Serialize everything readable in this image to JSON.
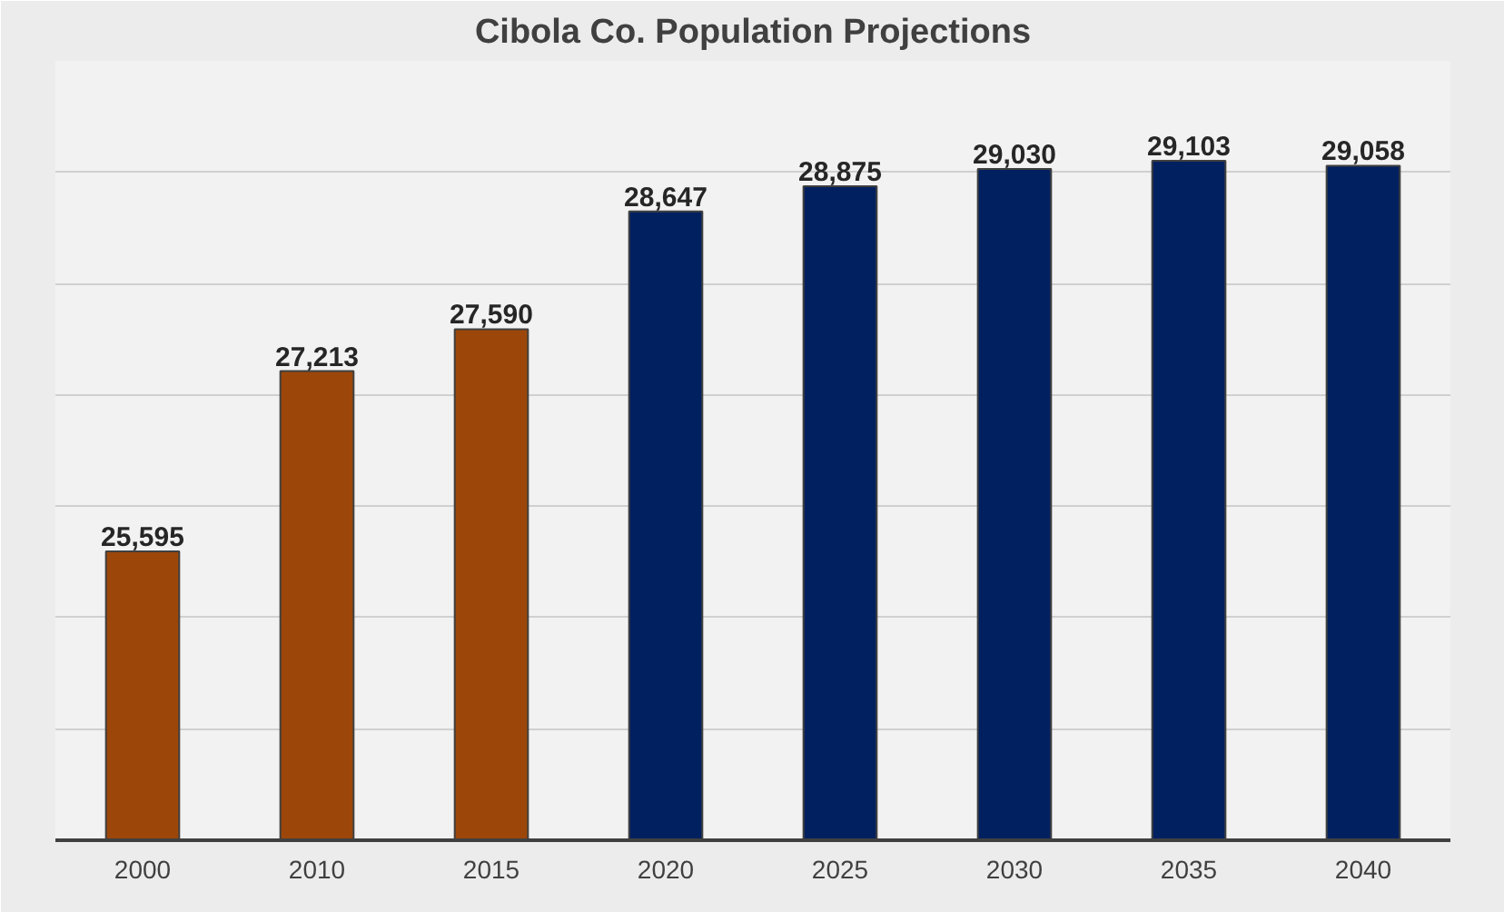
{
  "chart_data": {
    "type": "bar",
    "title": "Cibola Co. Population Projections",
    "categories": [
      "2000",
      "2010",
      "2015",
      "2020",
      "2025",
      "2030",
      "2035",
      "2040"
    ],
    "values": [
      25595,
      27213,
      27590,
      28647,
      28875,
      29030,
      29103,
      29058
    ],
    "value_labels": [
      "25,595",
      "27,213",
      "27,590",
      "28,647",
      "28,875",
      "29,030",
      "29,103",
      "29,058"
    ],
    "colors": [
      "#9c4709",
      "#9c4709",
      "#9c4709",
      "#002060",
      "#002060",
      "#002060",
      "#002060",
      "#002060"
    ],
    "ylim": [
      23000,
      30000
    ],
    "grid": "y",
    "tick_labels": "x"
  }
}
